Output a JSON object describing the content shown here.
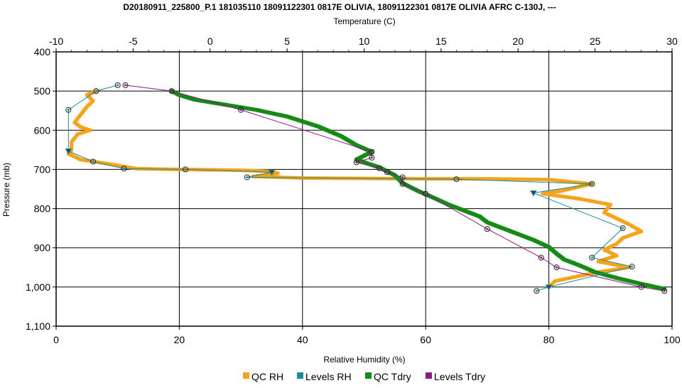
{
  "chart_data": {
    "type": "line",
    "title": "D20180911_225800_P.1 181035110 18091122301 0817E OLIVIA, 18091122301 0817E OLIVIA AFRC C-130J, ---",
    "top_axis": {
      "label": "Temperature (C)",
      "range": [
        -10,
        30
      ],
      "ticks": [
        "-10",
        "-5",
        "0",
        "5",
        "10",
        "15",
        "20",
        "25",
        "30"
      ]
    },
    "bottom_axis": {
      "label": "Relative Humidity (%)",
      "range": [
        0,
        100
      ],
      "ticks": [
        "0",
        "20",
        "40",
        "60",
        "80",
        "100"
      ]
    },
    "left_axis": {
      "label": "Pressure (mb)",
      "range": [
        400,
        1100
      ],
      "inverted": true,
      "ticks": [
        "400",
        "500",
        "600",
        "700",
        "800",
        "900",
        "1,000",
        "1,100"
      ]
    },
    "grid": true,
    "legend": {
      "placement": "bottom",
      "items": [
        {
          "label": "QC RH",
          "color": "#F5A31A"
        },
        {
          "label": "Levels RH",
          "color": "#1A8C9B"
        },
        {
          "label": "QC Tdry",
          "color": "#178A17"
        },
        {
          "label": "Levels Tdry",
          "color": "#8B1A8B"
        }
      ]
    },
    "series": [
      {
        "name": "QC RH",
        "axis": "rh",
        "color": "#F5A31A",
        "points": [
          [
            6.5,
            500
          ],
          [
            5,
            510
          ],
          [
            6,
            525
          ],
          [
            5,
            540
          ],
          [
            4,
            560
          ],
          [
            3,
            580
          ],
          [
            4,
            592
          ],
          [
            5.5,
            600
          ],
          [
            3.5,
            610
          ],
          [
            2.5,
            630
          ],
          [
            2.5,
            650
          ],
          [
            2,
            660
          ],
          [
            4,
            675
          ],
          [
            7,
            682
          ],
          [
            10,
            690
          ],
          [
            13,
            698
          ],
          [
            20,
            700
          ],
          [
            30,
            702
          ],
          [
            35,
            705
          ],
          [
            36,
            710
          ],
          [
            32,
            718
          ],
          [
            40,
            722
          ],
          [
            50,
            723
          ],
          [
            60,
            724
          ],
          [
            70,
            724
          ],
          [
            80,
            726
          ],
          [
            87,
            737
          ],
          [
            82,
            755
          ],
          [
            79,
            762
          ],
          [
            85,
            775
          ],
          [
            90,
            790
          ],
          [
            89,
            810
          ],
          [
            91,
            825
          ],
          [
            93,
            840
          ],
          [
            95,
            858
          ],
          [
            92,
            875
          ],
          [
            91,
            890
          ],
          [
            89,
            905
          ],
          [
            91,
            920
          ],
          [
            88,
            935
          ],
          [
            93,
            950
          ],
          [
            88,
            962
          ],
          [
            84,
            975
          ],
          [
            81,
            985
          ],
          [
            80,
            1000
          ]
        ]
      },
      {
        "name": "Levels RH",
        "axis": "rh",
        "color": "#1A8C9B",
        "points": [
          [
            10,
            485
          ],
          [
            6.5,
            500
          ],
          [
            2,
            548
          ],
          [
            2,
            653
          ],
          [
            6,
            680
          ],
          [
            11,
            698
          ],
          [
            21,
            700
          ],
          [
            35,
            707
          ],
          [
            31,
            720
          ],
          [
            65,
            725
          ],
          [
            87,
            737
          ],
          [
            77.5,
            760
          ],
          [
            92,
            850
          ],
          [
            87,
            925
          ],
          [
            93.5,
            948
          ],
          [
            80,
            1000
          ],
          [
            78,
            1010
          ]
        ]
      },
      {
        "name": "QC Tdry",
        "axis": "temp",
        "color": "#178A17",
        "points": [
          [
            -2.5,
            500
          ],
          [
            -2,
            510
          ],
          [
            -1,
            522
          ],
          [
            1,
            535
          ],
          [
            3,
            548
          ],
          [
            5,
            565
          ],
          [
            7,
            590
          ],
          [
            8.5,
            615
          ],
          [
            9.5,
            638
          ],
          [
            10.5,
            655
          ],
          [
            9.5,
            675
          ],
          [
            11,
            695
          ],
          [
            12,
            715
          ],
          [
            12.5,
            735
          ],
          [
            13.5,
            755
          ],
          [
            14.5,
            772
          ],
          [
            15.5,
            790
          ],
          [
            16.5,
            805
          ],
          [
            17.5,
            820
          ],
          [
            18,
            835
          ],
          [
            19,
            850
          ],
          [
            20,
            865
          ],
          [
            21,
            880
          ],
          [
            22,
            898
          ],
          [
            22.5,
            915
          ],
          [
            23,
            930
          ],
          [
            24,
            945
          ],
          [
            25,
            962
          ],
          [
            26.5,
            978
          ],
          [
            28,
            992
          ],
          [
            29.5,
            1005
          ]
        ]
      },
      {
        "name": "Levels Tdry",
        "axis": "temp",
        "color": "#8B1A8B",
        "points": [
          [
            -5.5,
            485
          ],
          [
            -2.5,
            500
          ],
          [
            2,
            548
          ],
          [
            10.5,
            655
          ],
          [
            10.5,
            670
          ],
          [
            9.5,
            682
          ],
          [
            11,
            697
          ],
          [
            11.5,
            707
          ],
          [
            12.5,
            720
          ],
          [
            12.5,
            737
          ],
          [
            14,
            762
          ],
          [
            18,
            852
          ],
          [
            21.5,
            925
          ],
          [
            22.5,
            950
          ],
          [
            28,
            1000
          ],
          [
            29.5,
            1010
          ]
        ]
      }
    ]
  }
}
